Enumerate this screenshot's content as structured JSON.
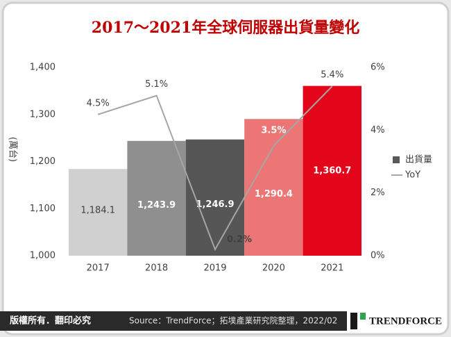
{
  "chart_data": {
    "type": "bar_line",
    "title": "2017～2021年全球伺服器出貨量變化",
    "y_label": "(萬台)",
    "categories": [
      "2017",
      "2018",
      "2019",
      "2020",
      "2021"
    ],
    "series": [
      {
        "name": "出貨量",
        "type": "bar",
        "color": "#595959",
        "colors": [
          "#d0d0d0",
          "#8f8f8f",
          "#565656",
          "#ec7676",
          "#e3061a"
        ],
        "values": [
          1184.1,
          1243.9,
          1246.9,
          1290.4,
          1360.7
        ],
        "value_labels": [
          "1,184.1",
          "1,243.9",
          "1,246.9",
          "1,290.4",
          "1,360.7"
        ]
      },
      {
        "name": "YoY",
        "type": "line",
        "axis": "y2",
        "color": "#a6a6a6",
        "values": [
          4.5,
          5.1,
          0.2,
          3.5,
          5.4
        ],
        "value_labels": [
          "4.5%",
          "5.1%",
          "0.2%",
          "3.5%",
          "5.4%"
        ]
      }
    ],
    "ylim": [
      1000,
      1400
    ],
    "yticks": [
      {
        "value": 1000,
        "label": "1,000"
      },
      {
        "value": 1100,
        "label": "1,100"
      },
      {
        "value": 1200,
        "label": "1,200"
      },
      {
        "value": 1300,
        "label": "1,300"
      },
      {
        "value": 1400,
        "label": "1,400"
      }
    ],
    "y2lim": [
      0,
      6
    ],
    "y2ticks": [
      {
        "value": 0,
        "label": "0%"
      },
      {
        "value": 2,
        "label": "2%"
      },
      {
        "value": 4,
        "label": "4%"
      },
      {
        "value": 6,
        "label": "6%"
      }
    ],
    "legend": "right"
  },
  "footer": {
    "copyright": "版權所有．翻印必究",
    "source": "Source：TrendForce；拓墣產業研究院整理，2022/02",
    "logo": "TRENDFORCE"
  }
}
